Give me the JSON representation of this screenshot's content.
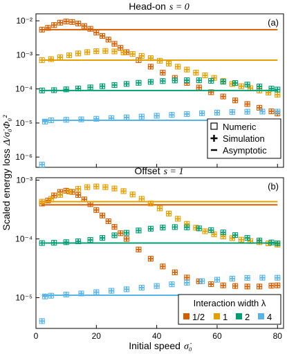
{
  "figure": {
    "ylabel_main": "Scaled energy loss",
    "ylabel_expr": "Δ/σ̇₀Φ₀²",
    "xlabel_main": "Initial speed",
    "xlabel_expr": "σ̇₀"
  },
  "panels": [
    {
      "title_main": "Head-on",
      "title_expr": "s = 0",
      "letter": "(a)"
    },
    {
      "title_main": "Offset",
      "title_expr": "s = 1",
      "letter": "(b)"
    }
  ],
  "legend_markers": {
    "items": [
      {
        "label": "Numeric"
      },
      {
        "label": "Simulation"
      },
      {
        "label": "Asymptotic"
      }
    ]
  },
  "legend_widths": {
    "title": "Interaction width λ",
    "items": [
      {
        "label": "1/2",
        "color": "#D55E00"
      },
      {
        "label": "1",
        "color": "#E69F00"
      },
      {
        "label": "2",
        "color": "#009E73"
      },
      {
        "label": "4",
        "color": "#56B4E9"
      }
    ]
  },
  "colors": {
    "half": "#D55E00",
    "one": "#E69F00",
    "two": "#009E73",
    "four": "#56B4E9"
  },
  "chart_data": [
    {
      "type": "scatter",
      "title": "Head-on s = 0",
      "xlabel": "Initial speed σ̇₀",
      "ylabel": "Scaled energy loss Δ/σ̇₀Φ₀²",
      "xlim": [
        0,
        82
      ],
      "ylim": [
        5e-07,
        0.016
      ],
      "yscale": "log",
      "x_ticks": [
        0,
        20,
        40,
        60,
        80
      ],
      "y_ticks": [
        "10^-6",
        "10^-5",
        "10^-4",
        "10^-3",
        "10^-2"
      ],
      "grid": false,
      "series": [
        {
          "name": "1/2",
          "asymptotic": 0.0055,
          "points": [
            [
              2,
              0.0055
            ],
            [
              4,
              0.0062
            ],
            [
              6,
              0.0075
            ],
            [
              8,
              0.0088
            ],
            [
              10,
              0.0095
            ],
            [
              12,
              0.0092
            ],
            [
              14,
              0.0083
            ],
            [
              16,
              0.007
            ],
            [
              18,
              0.0058
            ],
            [
              20,
              0.0045
            ],
            [
              22,
              0.0036
            ],
            [
              24,
              0.0028
            ],
            [
              26,
              0.0021
            ],
            [
              28,
              0.0016
            ],
            [
              30,
              0.0012
            ],
            [
              34,
              0.0007
            ],
            [
              38,
              0.00045
            ],
            [
              42,
              0.0003
            ],
            [
              46,
              0.00021
            ],
            [
              50,
              0.00015
            ],
            [
              54,
              0.00011
            ],
            [
              58,
              8e-05
            ],
            [
              62,
              6e-05
            ],
            [
              66,
              4.6e-05
            ],
            [
              70,
              3.6e-05
            ],
            [
              74,
              2.8e-05
            ],
            [
              78,
              2.2e-05
            ],
            [
              80,
              1.9e-05
            ]
          ]
        },
        {
          "name": "1",
          "asymptotic": 0.0007,
          "points": [
            [
              2,
              0.0007
            ],
            [
              5,
              0.00075
            ],
            [
              8,
              0.00085
            ],
            [
              11,
              0.00097
            ],
            [
              14,
              0.0011
            ],
            [
              17,
              0.0012
            ],
            [
              20,
              0.00128
            ],
            [
              23,
              0.0013
            ],
            [
              26,
              0.00126
            ],
            [
              29,
              0.00118
            ],
            [
              32,
              0.00106
            ],
            [
              35,
              0.00093
            ],
            [
              38,
              0.0008
            ],
            [
              41,
              0.00067
            ],
            [
              44,
              0.00055
            ],
            [
              47,
              0.00045
            ],
            [
              50,
              0.00037
            ],
            [
              53,
              0.0003
            ],
            [
              56,
              0.00025
            ],
            [
              59,
              0.00021
            ],
            [
              62,
              0.00017
            ],
            [
              65,
              0.00014
            ],
            [
              68,
              0.00012
            ],
            [
              71,
              0.000105
            ],
            [
              74,
              9e-05
            ],
            [
              77,
              7.8e-05
            ],
            [
              80,
              6.8e-05
            ]
          ]
        },
        {
          "name": "2",
          "asymptotic": 9e-05,
          "points": [
            [
              2,
              9e-05
            ],
            [
              6,
              9.2e-05
            ],
            [
              10,
              9.7e-05
            ],
            [
              14,
              0.000103
            ],
            [
              18,
              0.000111
            ],
            [
              22,
              0.00012
            ],
            [
              26,
              0.00013
            ],
            [
              30,
              0.00014
            ],
            [
              34,
              0.000151
            ],
            [
              38,
              0.000161
            ],
            [
              42,
              0.00017
            ],
            [
              46,
              0.000177
            ],
            [
              50,
              0.00018
            ],
            [
              54,
              0.000179
            ],
            [
              58,
              0.000173
            ],
            [
              62,
              0.000163
            ],
            [
              66,
              0.000149
            ],
            [
              70,
              0.000134
            ],
            [
              74,
              0.000118
            ],
            [
              78,
              0.000102
            ],
            [
              80,
              9.6e-05
            ]
          ]
        },
        {
          "name": "4",
          "asymptotic": 1.2e-05,
          "points": [
            [
              2,
              6e-07
            ],
            [
              3,
              1.1e-05
            ],
            [
              5,
              1.2e-05
            ],
            [
              10,
              1.24e-05
            ],
            [
              15,
              1.28e-05
            ],
            [
              20,
              1.33e-05
            ],
            [
              25,
              1.39e-05
            ],
            [
              30,
              1.46e-05
            ],
            [
              35,
              1.54e-05
            ],
            [
              40,
              1.63e-05
            ],
            [
              45,
              1.73e-05
            ],
            [
              50,
              1.83e-05
            ],
            [
              55,
              1.93e-05
            ],
            [
              60,
              2.02e-05
            ],
            [
              65,
              2.09e-05
            ],
            [
              70,
              2.14e-05
            ],
            [
              75,
              2.16e-05
            ],
            [
              80,
              2.15e-05
            ]
          ]
        }
      ]
    },
    {
      "type": "scatter",
      "title": "Offset s = 1",
      "xlabel": "Initial speed σ̇₀",
      "ylabel": "Scaled energy loss Δ/σ̇₀Φ₀²",
      "xlim": [
        0,
        82
      ],
      "ylim": [
        3e-06,
        0.0011
      ],
      "yscale": "log",
      "x_ticks": [
        0,
        20,
        40,
        60,
        80
      ],
      "y_ticks": [
        "10^-5",
        "10^-4",
        "10^-3"
      ],
      "grid": false,
      "series": [
        {
          "name": "1/2",
          "asymptotic": 0.00038,
          "points": [
            [
              2,
              0.0004
            ],
            [
              4,
              0.00045
            ],
            [
              6,
              0.00055
            ],
            [
              8,
              0.00063
            ],
            [
              10,
              0.00066
            ],
            [
              12,
              0.00063
            ],
            [
              14,
              0.00056
            ],
            [
              16,
              0.00047
            ],
            [
              18,
              0.00039
            ],
            [
              20,
              0.00031
            ],
            [
              22,
              0.00025
            ],
            [
              24,
              0.0002
            ],
            [
              26,
              0.00016
            ],
            [
              28,
              0.000125
            ],
            [
              30,
              0.0001
            ],
            [
              34,
              6.6e-05
            ],
            [
              38,
              4.6e-05
            ],
            [
              42,
              3.4e-05
            ],
            [
              46,
              2.7e-05
            ],
            [
              50,
              2.2e-05
            ],
            [
              54,
              1.9e-05
            ],
            [
              58,
              1.7e-05
            ],
            [
              62,
              1.62e-05
            ],
            [
              66,
              1.58e-05
            ],
            [
              70,
              1.55e-05
            ],
            [
              74,
              1.55e-05
            ],
            [
              78,
              1.6e-05
            ],
            [
              80,
              1.62e-05
            ]
          ]
        },
        {
          "name": "1",
          "asymptotic": 0.00043,
          "points": [
            [
              2,
              0.00043
            ],
            [
              5,
              0.00048
            ],
            [
              8,
              0.00056
            ],
            [
              11,
              0.00064
            ],
            [
              14,
              0.00071
            ],
            [
              17,
              0.00076
            ],
            [
              20,
              0.00078
            ],
            [
              23,
              0.00076
            ],
            [
              26,
              0.00072
            ],
            [
              29,
              0.00065
            ],
            [
              32,
              0.00057
            ],
            [
              35,
              0.00048
            ],
            [
              38,
              0.0004
            ],
            [
              41,
              0.00033
            ],
            [
              44,
              0.00027
            ],
            [
              47,
              0.00022
            ],
            [
              50,
              0.00018
            ],
            [
              53,
              0.000155
            ],
            [
              56,
              0.000135
            ],
            [
              59,
              0.00012
            ],
            [
              62,
              0.00011
            ],
            [
              65,
              0.000103
            ],
            [
              68,
              9.7e-05
            ],
            [
              71,
              9.2e-05
            ],
            [
              74,
              8.8e-05
            ],
            [
              77,
              8.4e-05
            ],
            [
              80,
              8e-05
            ]
          ]
        },
        {
          "name": "2",
          "asymptotic": 8.5e-05,
          "points": [
            [
              2,
              8.5e-05
            ],
            [
              6,
              8.6e-05
            ],
            [
              10,
              8.8e-05
            ],
            [
              14,
              9.1e-05
            ],
            [
              18,
              9.6e-05
            ],
            [
              22,
              0.000104
            ],
            [
              26,
              0.000115
            ],
            [
              30,
              0.000127
            ],
            [
              34,
              0.000139
            ],
            [
              38,
              0.000149
            ],
            [
              42,
              0.000156
            ],
            [
              46,
              0.000159
            ],
            [
              50,
              0.000157
            ],
            [
              54,
              0.000151
            ],
            [
              58,
              0.000141
            ],
            [
              62,
              0.000129
            ],
            [
              66,
              0.000116
            ],
            [
              70,
              0.000104
            ],
            [
              74,
              9.4e-05
            ],
            [
              78,
              8.7e-05
            ],
            [
              80,
              8.4e-05
            ]
          ]
        },
        {
          "name": "4",
          "asymptotic": 1.1e-05,
          "points": [
            [
              2,
              4e-06
            ],
            [
              3,
              1.05e-05
            ],
            [
              5,
              1.08e-05
            ],
            [
              10,
              1.13e-05
            ],
            [
              15,
              1.18e-05
            ],
            [
              20,
              1.24e-05
            ],
            [
              25,
              1.31e-05
            ],
            [
              30,
              1.39e-05
            ],
            [
              35,
              1.48e-05
            ],
            [
              40,
              1.58e-05
            ],
            [
              45,
              1.69e-05
            ],
            [
              50,
              1.8e-05
            ],
            [
              55,
              1.91e-05
            ],
            [
              60,
              2.02e-05
            ],
            [
              65,
              2.11e-05
            ],
            [
              70,
              2.17e-05
            ],
            [
              75,
              2.19e-05
            ],
            [
              80,
              2.18e-05
            ]
          ]
        }
      ]
    }
  ]
}
